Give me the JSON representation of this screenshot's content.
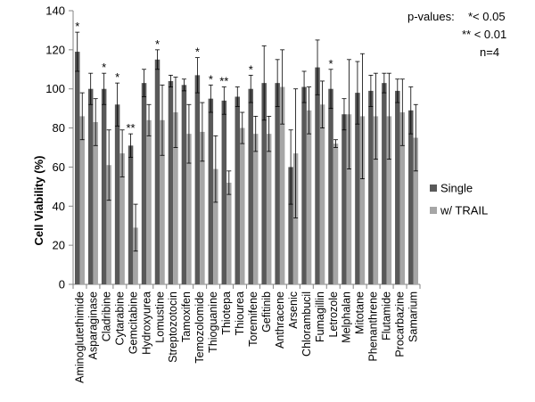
{
  "chart_data": {
    "type": "bar",
    "ylabel": "Cell Viability (%)",
    "ylim": [
      0,
      140
    ],
    "yticks": [
      0,
      20,
      40,
      60,
      80,
      100,
      120,
      140
    ],
    "grid": false,
    "legend_position": "right",
    "categories": [
      "Aminoglutethimide",
      "Asparaginase",
      "Cladribine",
      "Cytarabine",
      "Gemcitabine",
      "Hydroxyurea",
      "Lomustine",
      "Streptozotocin",
      "Tamoxifen",
      "Temozolomide",
      "Thioguanine",
      "Thiotepa",
      "Thiourea",
      "Toremifene",
      "Gefitinib",
      "Anthracene",
      "Arsenic",
      "Chlorambucil",
      "Fumagillin",
      "Letrozole",
      "Melphalan",
      "Mitotane",
      "Phenanthrene",
      "Flutamide",
      "Procarbazine",
      "Samarium"
    ],
    "series": [
      {
        "name": "Single",
        "color": "#595959",
        "values": [
          119,
          100,
          100,
          92,
          71,
          103,
          115,
          104,
          102,
          107,
          95,
          94,
          96,
          100,
          103,
          103,
          60,
          101,
          111,
          100,
          87,
          98,
          99,
          103,
          99,
          89
        ],
        "errors": [
          10,
          8,
          8,
          11,
          6,
          7,
          5,
          3,
          3,
          9,
          7,
          7,
          5,
          7,
          19,
          12,
          19,
          8,
          14,
          10,
          8,
          16,
          8,
          5,
          6,
          12
        ]
      },
      {
        "name": "w/ TRAIL",
        "color": "#a6a6a6",
        "values": [
          86,
          83,
          61,
          67,
          29,
          84,
          84,
          88,
          77,
          78,
          59,
          52,
          80,
          77,
          77,
          101,
          67,
          89,
          92,
          72,
          87,
          86,
          86,
          86,
          88,
          75
        ],
        "errors": [
          12,
          12,
          18,
          12,
          12,
          8,
          18,
          18,
          15,
          15,
          17,
          6,
          8,
          9,
          9,
          19,
          33,
          12,
          12,
          2,
          28,
          32,
          22,
          22,
          17,
          17
        ]
      }
    ],
    "significance_single": [
      "*",
      "",
      "*",
      "*",
      "**",
      "",
      "*",
      "",
      "",
      "*",
      "*",
      "**",
      "",
      "*",
      "",
      "",
      "",
      "",
      "",
      "*",
      "",
      "",
      "",
      "",
      "",
      ""
    ],
    "annotation": {
      "title": "p-values:",
      "line1": "*< 0.05",
      "line2": "** < 0.01",
      "line3": "n=4"
    }
  }
}
